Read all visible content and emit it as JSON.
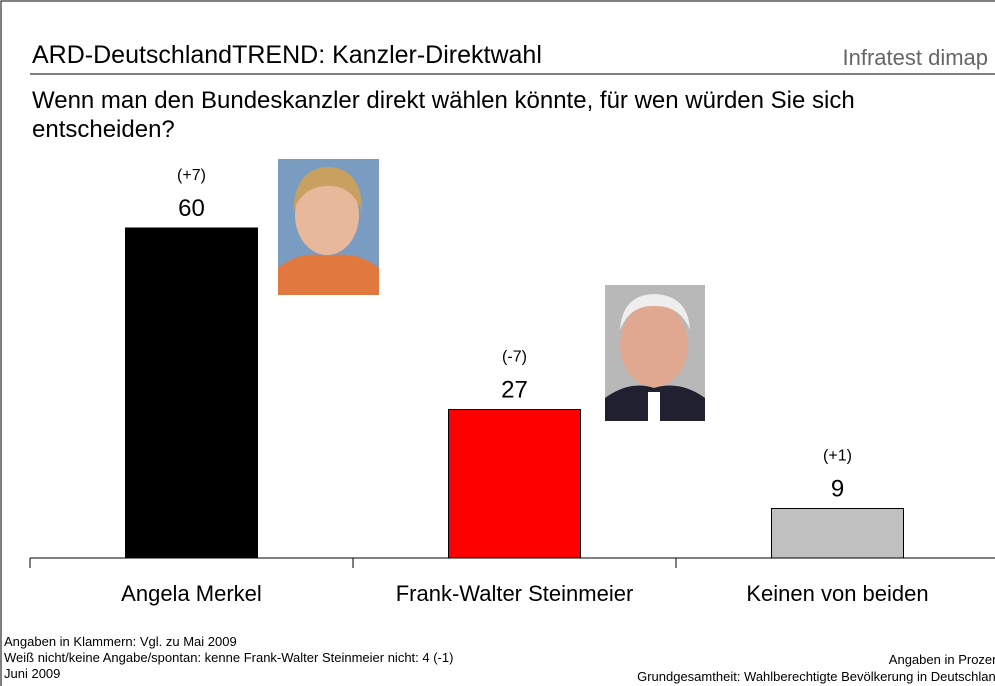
{
  "chart_data": {
    "type": "bar",
    "title": "ARD-DeutschlandTREND: Kanzler-Direktwahl",
    "brand": "Infratest dimap",
    "subtitle": [
      "Wenn man den Bundeskanzler direkt wählen könnte, für wen würden Sie sich",
      "entscheiden?"
    ],
    "categories": [
      "Angela Merkel",
      "Frank-Walter Steinmeier",
      "Keinen von beiden"
    ],
    "values": [
      60,
      27,
      9
    ],
    "changes": [
      "(+7)",
      "(-7)",
      "(+1)"
    ],
    "colors": [
      "#000000",
      "#ff0000",
      "#c0c0c0"
    ],
    "notes_left": [
      "Angaben in Klammern: Vgl. zu Mai 2009",
      "Weiß nicht/keine Angabe/spontan: kenne Frank-Walter Steinmeier nicht: 4 (-1)",
      "Juni 2009"
    ],
    "notes_right": [
      "Angaben in Prozent",
      "Grundgesamtheit: Wahlberechtigte Bevölkerung in Deutschland"
    ]
  }
}
